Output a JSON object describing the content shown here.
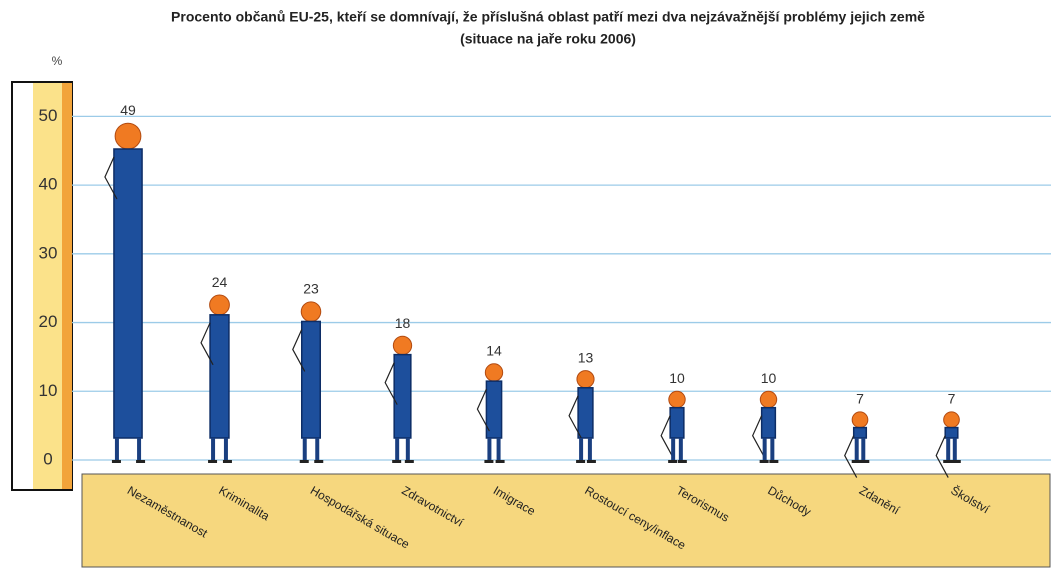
{
  "chart_data": {
    "type": "bar",
    "title": "Procento občanů EU-25, kteří se domnívají, že příslušná oblast patří mezi dva nejzávažnější problémy jejich země",
    "subtitle": "(situace na jaře roku 2006)",
    "y_label": "%",
    "categories": [
      "Nezaměstnanost",
      "Kriminalita",
      "Hospodářská situace",
      "Zdravotnictví",
      "Imigrace",
      "Rostoucí ceny/inflace",
      "Terorismus",
      "Důchody",
      "Zdanění",
      "Školství"
    ],
    "values": [
      49,
      24,
      23,
      18,
      14,
      13,
      10,
      10,
      7,
      7
    ],
    "color": "#1d4f9c",
    "ylim": [
      0,
      55
    ],
    "yticks": [
      0,
      10,
      20,
      30,
      40,
      50
    ],
    "grid": true
  }
}
